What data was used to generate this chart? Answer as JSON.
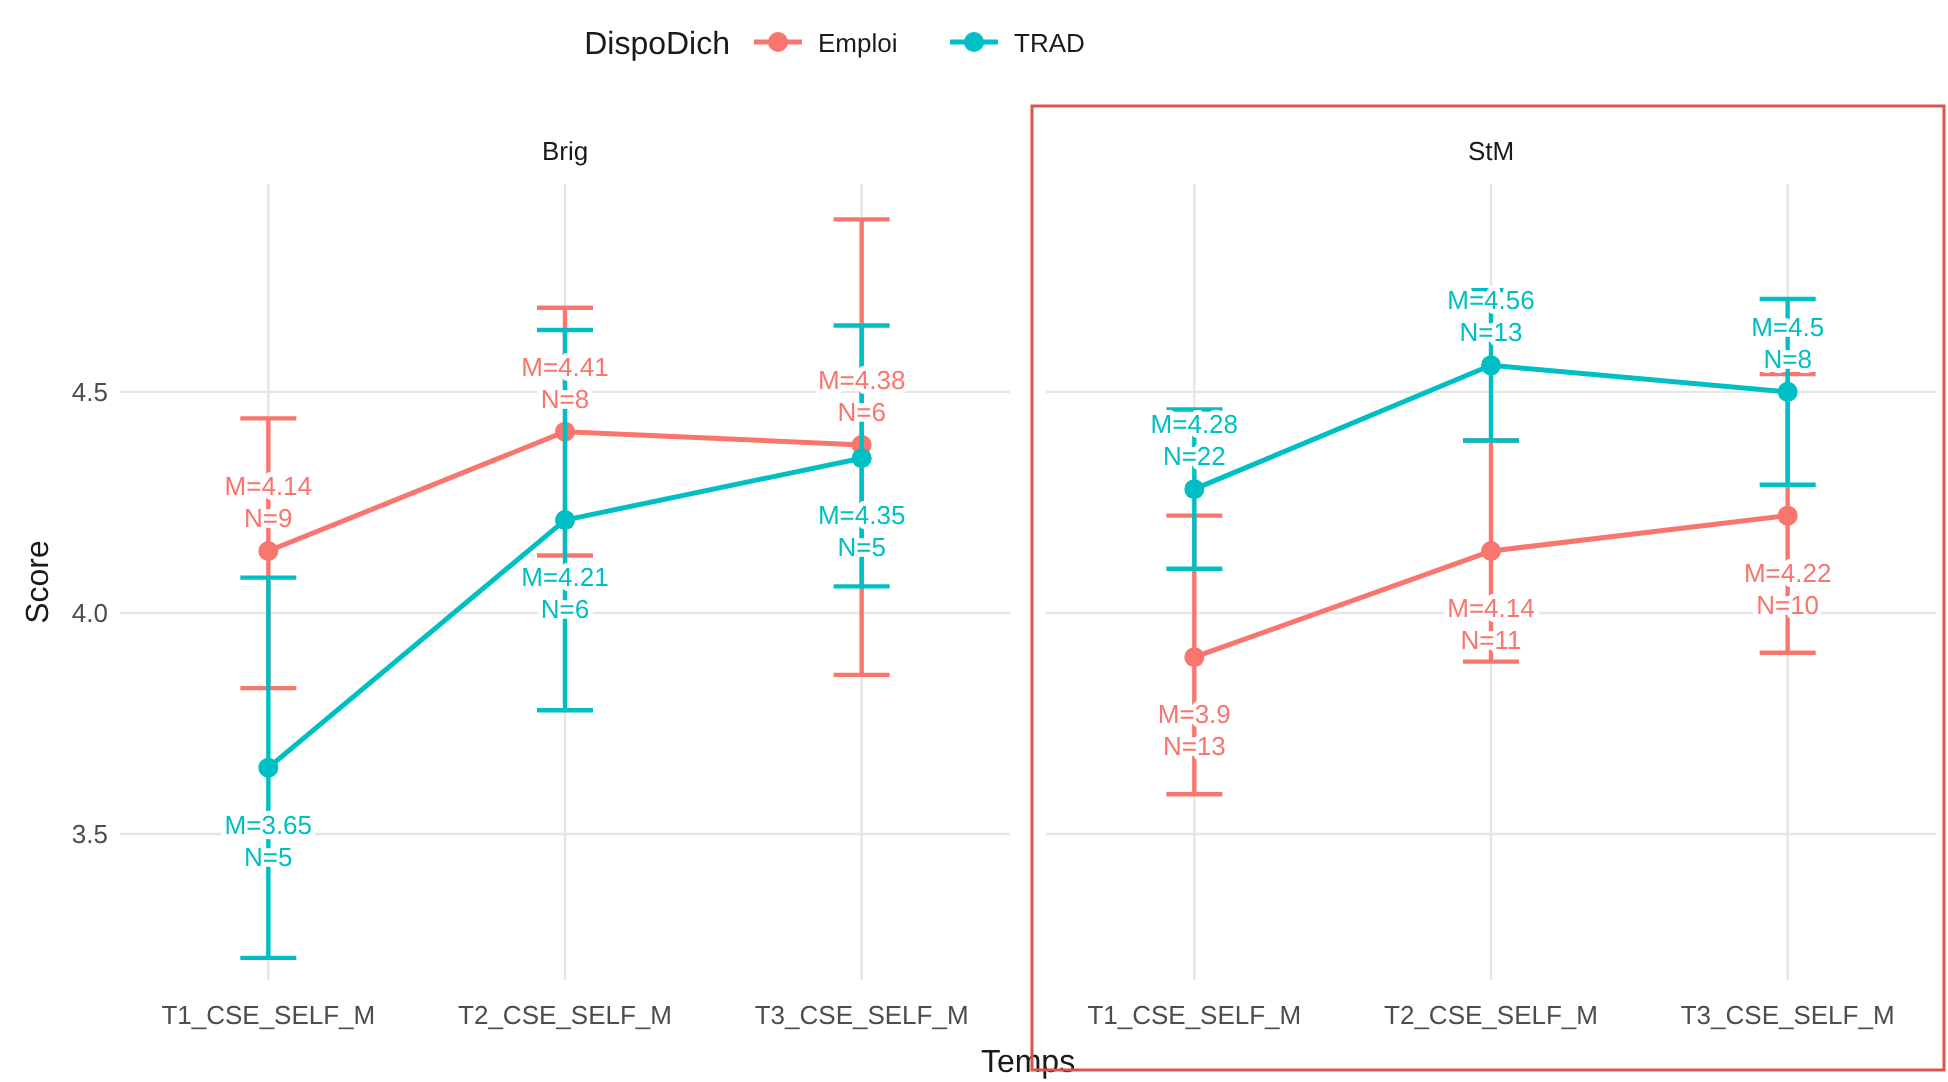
{
  "chart_data": [
    {
      "type": "line",
      "title": "Brig",
      "ylabel": "Score",
      "legend_title": "DispoDich",
      "legend": "top",
      "categories": [
        "T1_CSE_SELF_M",
        "T2_CSE_SELF_M",
        "T3_CSE_SELF_M"
      ],
      "ylim": [
        3.17,
        4.97
      ],
      "yticks": [
        3.5,
        {
          "value": 4.0,
          "label": "4.0"
        },
        4.5
      ],
      "grid": true,
      "marker": "circle",
      "line_style": "solid",
      "series": [
        {
          "name": "Emploi",
          "color": "#f8766d",
          "values": [
            4.14,
            4.41,
            4.38
          ],
          "errors": [
            [
              3.83,
              4.44
            ],
            [
              4.13,
              4.69
            ],
            [
              3.86,
              4.89
            ]
          ],
          "value_labels": [
            "M=4.14\nN=9",
            "M=4.41\nN=8",
            "M=4.38\nN=6"
          ]
        },
        {
          "name": "TRAD",
          "color": "#00bfc4",
          "values": [
            3.65,
            4.21,
            4.35
          ],
          "errors": [
            [
              3.22,
              4.08
            ],
            [
              3.78,
              4.64
            ],
            [
              4.06,
              4.65
            ]
          ],
          "value_labels": [
            "M=3.65\nN=5",
            "M=4.21\nN=6",
            "M=4.35\nN=5"
          ]
        }
      ]
    },
    {
      "type": "line",
      "title": "StM",
      "xlabel": "Temps",
      "categories": [
        "T1_CSE_SELF_M",
        "T2_CSE_SELF_M",
        "T3_CSE_SELF_M"
      ],
      "ylim": [
        3.17,
        4.97
      ],
      "yticks": [
        {
          "value": 3.5,
          "label": null
        },
        {
          "value": 4.0,
          "label": null
        },
        {
          "value": 4.5,
          "label": null
        }
      ],
      "tick_labels": "x",
      "grid": true,
      "marker": "circle",
      "line_style": "solid",
      "series": [
        {
          "name": "Emploi",
          "color": "#f8766d",
          "values": [
            3.9,
            4.14,
            4.22
          ],
          "errors": [
            [
              3.59,
              4.22
            ],
            [
              3.89,
              4.39
            ],
            [
              3.91,
              4.54
            ]
          ],
          "value_labels": [
            "M=3.9\nN=13",
            "M=4.14\nN=11",
            "M=4.22\nN=10"
          ]
        },
        {
          "name": "TRAD",
          "color": "#00bfc4",
          "values": [
            4.28,
            4.56,
            4.5
          ],
          "errors": [
            [
              4.1,
              4.46
            ],
            [
              4.39,
              4.73
            ],
            [
              4.29,
              4.71
            ]
          ],
          "value_labels": [
            "M=4.28\nN=22",
            "M=4.56\nN=13",
            "M=4.5\nN=8"
          ]
        }
      ]
    }
  ]
}
